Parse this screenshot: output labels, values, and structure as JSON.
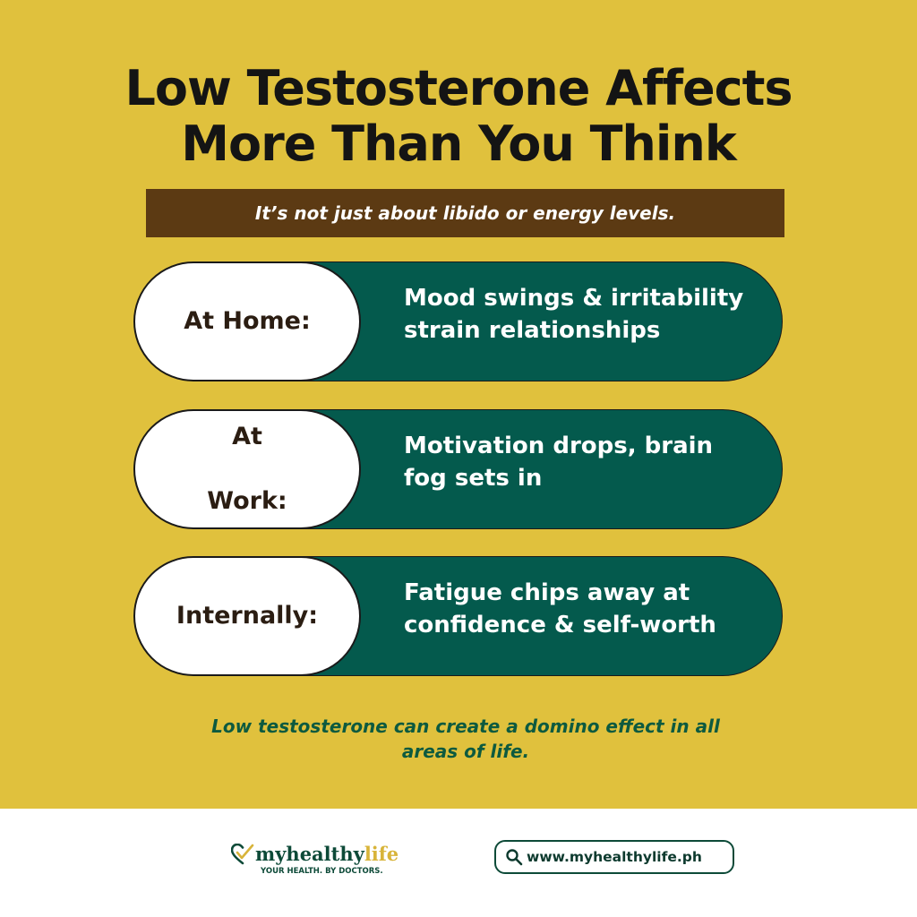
{
  "header": {
    "title_line1": "Low Testosterone Affects",
    "title_line2": "More Than You Think",
    "subtitle": "It’s not just about libido or energy levels."
  },
  "rows": [
    {
      "label": "At Home:",
      "text_line1": "Mood swings & irritability",
      "text_line2": "strain relationships"
    },
    {
      "label_line1": "At",
      "label_line2": "Work:",
      "text_line1": "Motivation drops, brain",
      "text_line2": "fog sets in"
    },
    {
      "label": "Internally:",
      "text_line1": "Fatigue chips away at",
      "text_line2": "confidence & self-worth"
    }
  ],
  "footnote": {
    "line1": "Low testosterone can create a domino effect in all",
    "line2": "areas of life."
  },
  "footer": {
    "logo_main": "myhealthy",
    "logo_accent": "life",
    "logo_tagline": "YOUR HEALTH. BY DOCTORS.",
    "url": "www.myhealthylife.ph",
    "url_icon": "search-icon",
    "logo_icon": "heart-check-icon"
  },
  "colors": {
    "background": "#e0c13d",
    "subtitle_bar": "#5c3a13",
    "row_green": "#045a4d",
    "footnote_text": "#0d5a3f",
    "brand_green": "#0d4a38",
    "brand_gold": "#d8b43a"
  }
}
